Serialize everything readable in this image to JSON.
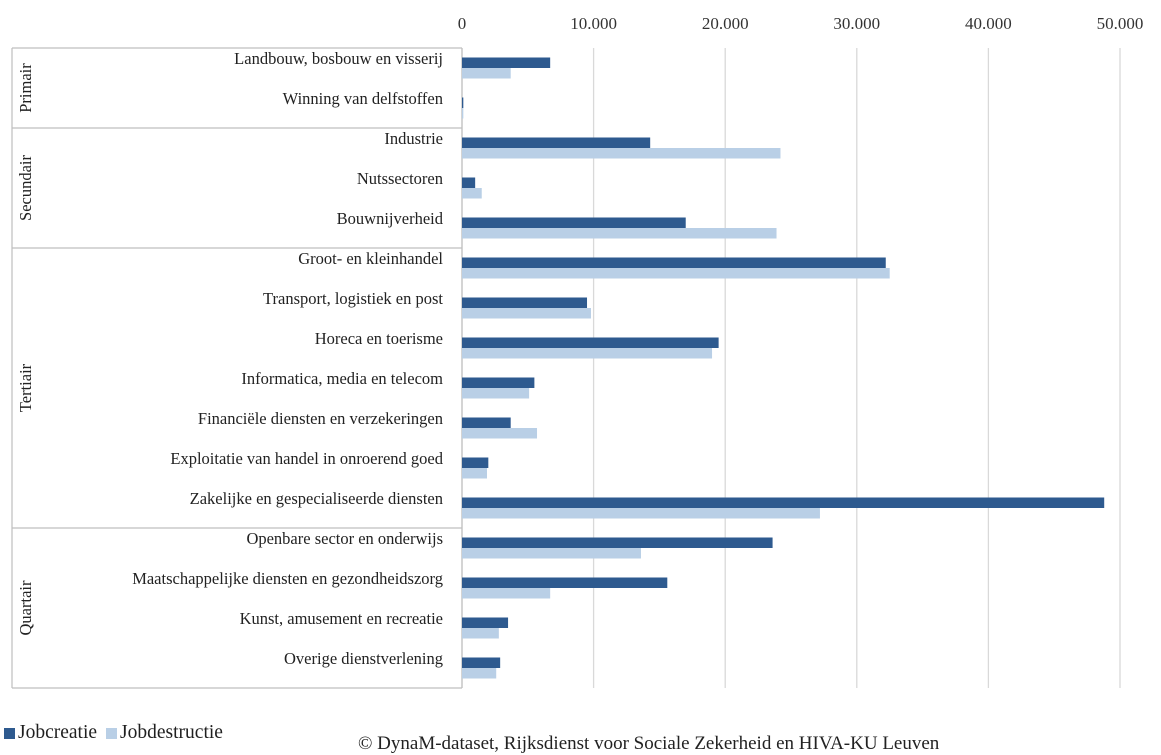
{
  "chart_data": {
    "type": "bar",
    "orientation": "horizontal",
    "x_ticks": [
      "0",
      "10.000",
      "20.000",
      "30.000",
      "40.000",
      "50.000"
    ],
    "xlim": [
      0,
      50000
    ],
    "grid": true,
    "groups": [
      {
        "name": "Primair",
        "items": [
          0,
          1
        ]
      },
      {
        "name": "Secundair",
        "items": [
          2,
          3,
          4
        ]
      },
      {
        "name": "Tertiair",
        "items": [
          5,
          6,
          7,
          8,
          9,
          10,
          11
        ]
      },
      {
        "name": "Quartair",
        "items": [
          12,
          13,
          14,
          15
        ]
      }
    ],
    "categories": [
      "Landbouw, bosbouw en visserij",
      "Winning van delfstoffen",
      "Industrie",
      "Nutssectoren",
      "Bouwnijverheid",
      "Groot- en kleinhandel",
      "Transport, logistiek en post",
      "Horeca en toerisme",
      "Informatica, media en telecom",
      "Financiële diensten en verzekeringen",
      "Exploitatie van handel in onroerend goed",
      "Zakelijke en gespecialiseerde diensten",
      "Openbare sector en onderwijs",
      "Maatschappelijke diensten en gezondheidszorg",
      "Kunst, amusement en recreatie",
      "Overige dienstverlening"
    ],
    "series": [
      {
        "name": "Jobcreatie",
        "color": "#2e5a8f",
        "values": [
          6700,
          100,
          14300,
          1000,
          17000,
          32200,
          9500,
          19500,
          5500,
          3700,
          2000,
          48800,
          23600,
          15600,
          3500,
          2900
        ]
      },
      {
        "name": "Jobdestructie",
        "color": "#b9cfe6",
        "values": [
          3700,
          100,
          24200,
          1500,
          23900,
          32500,
          9800,
          19000,
          5100,
          5700,
          1900,
          27200,
          13600,
          6700,
          2800,
          2600
        ]
      }
    ],
    "legend_position": "bottom-left"
  },
  "source_note": "© DynaM-dataset, Rijksdienst voor Sociale Zekerheid en HIVA-KU Leuven"
}
